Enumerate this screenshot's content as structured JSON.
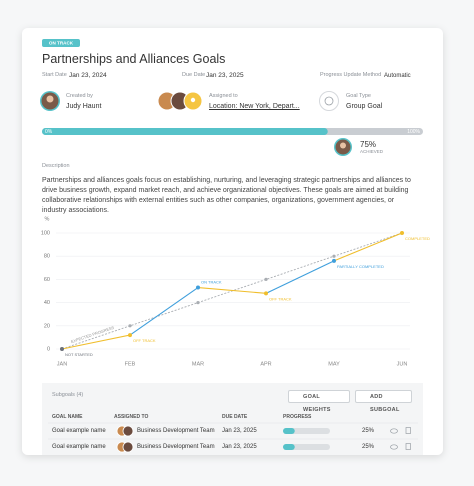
{
  "status": "ON TRACK",
  "title": "Partnerships and Alliances Goals",
  "meta": [
    {
      "label": "Start Date",
      "value": "Jan 23, 2024"
    },
    {
      "label": "Due Date",
      "value": "Jan 23, 2025"
    },
    {
      "label": "Progress Update Method",
      "value": "Automatic"
    }
  ],
  "people": [
    {
      "label": "Created by",
      "value": "Judy Haunt"
    },
    {
      "label": "Assigned to",
      "value": "Location: New York, Depart..."
    },
    {
      "label": "Goal Type",
      "value": "Group Goal"
    }
  ],
  "progress": {
    "range": [
      0,
      100
    ],
    "min_label": "0%",
    "max_label": "100%",
    "value": 75,
    "value_label": "75%",
    "caption": "ACHIEVED"
  },
  "description": {
    "label": "Description",
    "text": "Partnerships and alliances goals focus on establishing, nurturing, and leveraging strategic partnerships and alliances to drive business growth, expand market reach, and achieve organizational objectives. These goals are aimed at building collaborative relationships with external entities such as other companies, organizations, government agencies, or industry associations."
  },
  "chart_data": {
    "type": "line",
    "y_label": "%",
    "categories": [
      "JAN",
      "FEB",
      "MAR",
      "APR",
      "MAY",
      "JUN"
    ],
    "ylim": [
      0,
      100
    ],
    "yticks": [
      0,
      20,
      40,
      60,
      80,
      100
    ],
    "grid": true,
    "series": [
      {
        "name": "EXPECTED PROGRESS",
        "color": "#a9adb2",
        "dashed": true,
        "values": [
          0,
          20,
          40,
          60,
          80,
          100
        ]
      },
      {
        "values": [
          0,
          12,
          53,
          48,
          76,
          100
        ],
        "point_labels": [
          "NOT STARTED",
          "OFF TRACK",
          "ON TRACK",
          "OFF TRACK",
          "PARTIALLY COMPLETED",
          "COMPLETED"
        ],
        "point_colors": [
          "#6b7078",
          "#f0be2c",
          "#3f9fdc",
          "#f0be2c",
          "#3f9fdc",
          "#f0be2c"
        ]
      }
    ]
  },
  "subgoals": {
    "title": "Subgoals (4)",
    "buttons": [
      "GOAL WEIGHTS",
      "ADD SUBGOAL"
    ],
    "columns": [
      "GOAL NAME",
      "ASSIGNED TO",
      "DUE DATE",
      "PROGRESS"
    ],
    "progress_range": [
      0,
      100
    ],
    "rows": [
      {
        "name": "Goal example name",
        "assigned": "Business Development Team",
        "due": "Jan 23, 2025",
        "progress": 25,
        "progress_label": "25%"
      },
      {
        "name": "Goal example name",
        "assigned": "Business Development Team",
        "due": "Jan 23, 2025",
        "progress": 25,
        "progress_label": "25%"
      }
    ]
  }
}
